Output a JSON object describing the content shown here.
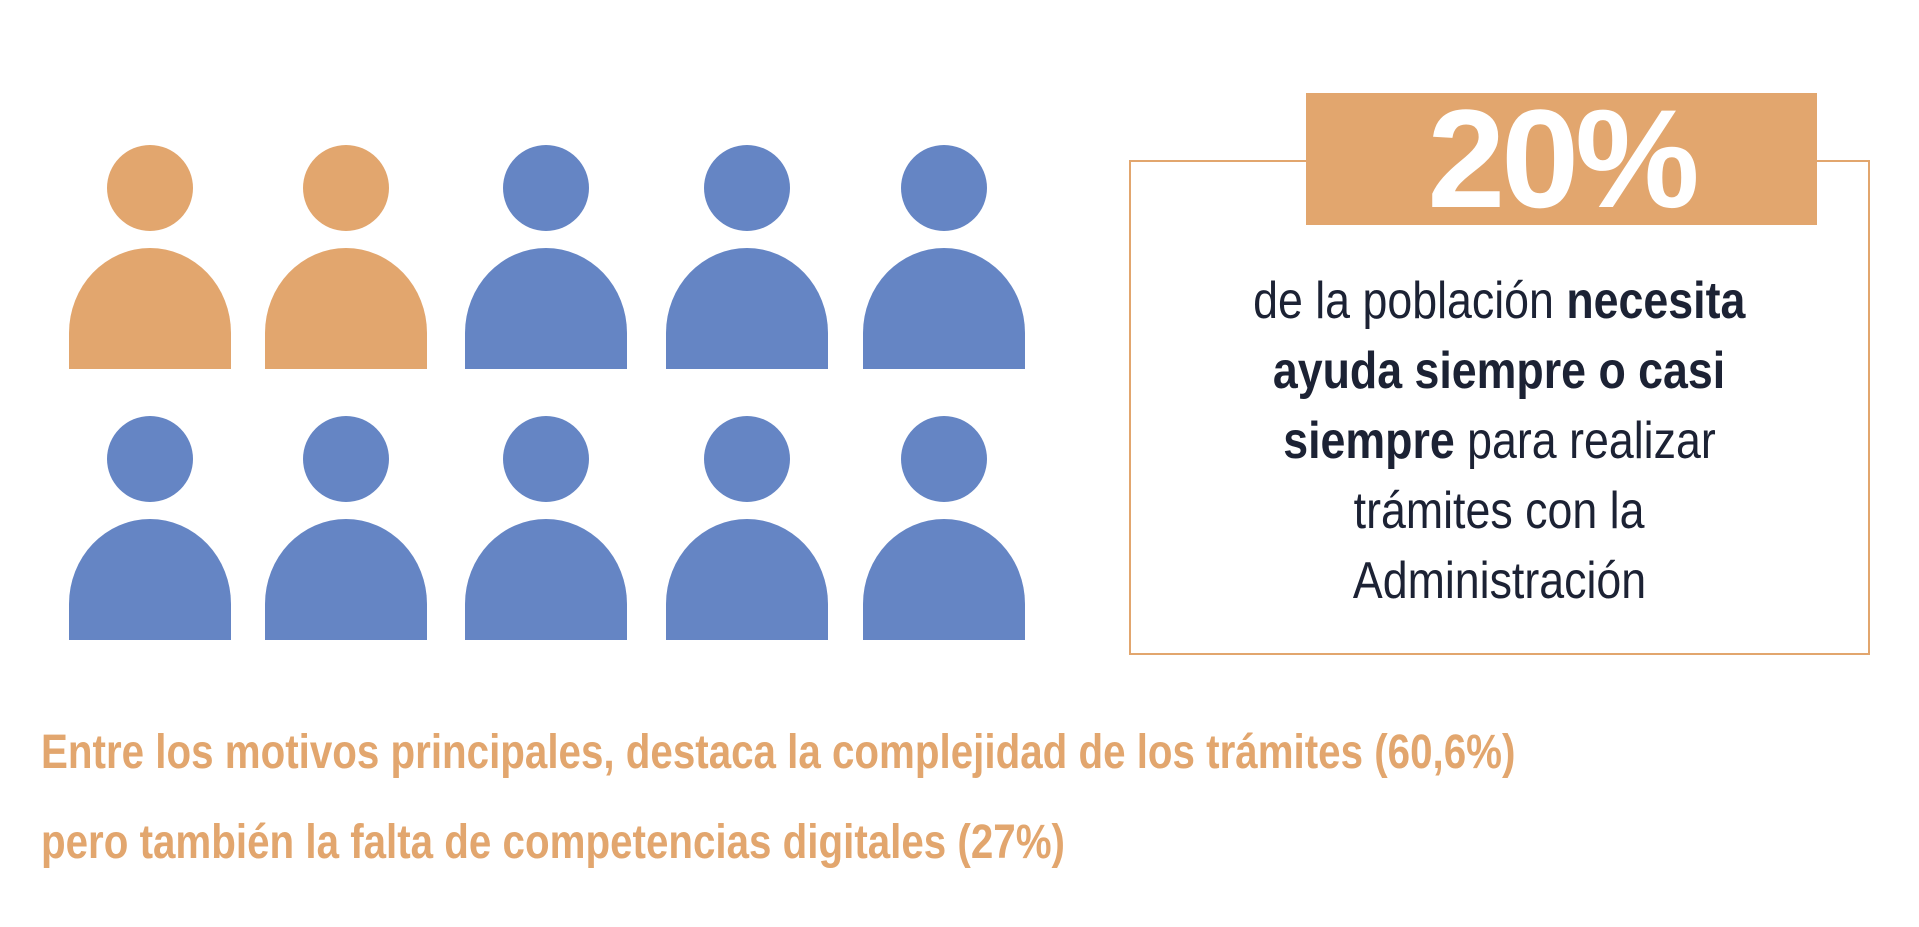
{
  "colors": {
    "highlight": "#e2a66e",
    "base": "#6585c4",
    "text": "#1c2234"
  },
  "pictogram": {
    "total": 10,
    "highlighted": 2,
    "icon": "person-icon"
  },
  "stat": {
    "value": "20%",
    "line1_normal": "de la población ",
    "line1_bold": "necesita",
    "line2_bold": "ayuda siempre o casi",
    "line3_bold": "siempre",
    "line3_normal": " para realizar",
    "line4": "trámites con la",
    "line5": "Administración"
  },
  "footer": {
    "line1": "Entre los motivos principales, destaca la complejidad de los trámites (60,6%)",
    "line2": "pero también la falta de competencias digitales (27%)"
  }
}
